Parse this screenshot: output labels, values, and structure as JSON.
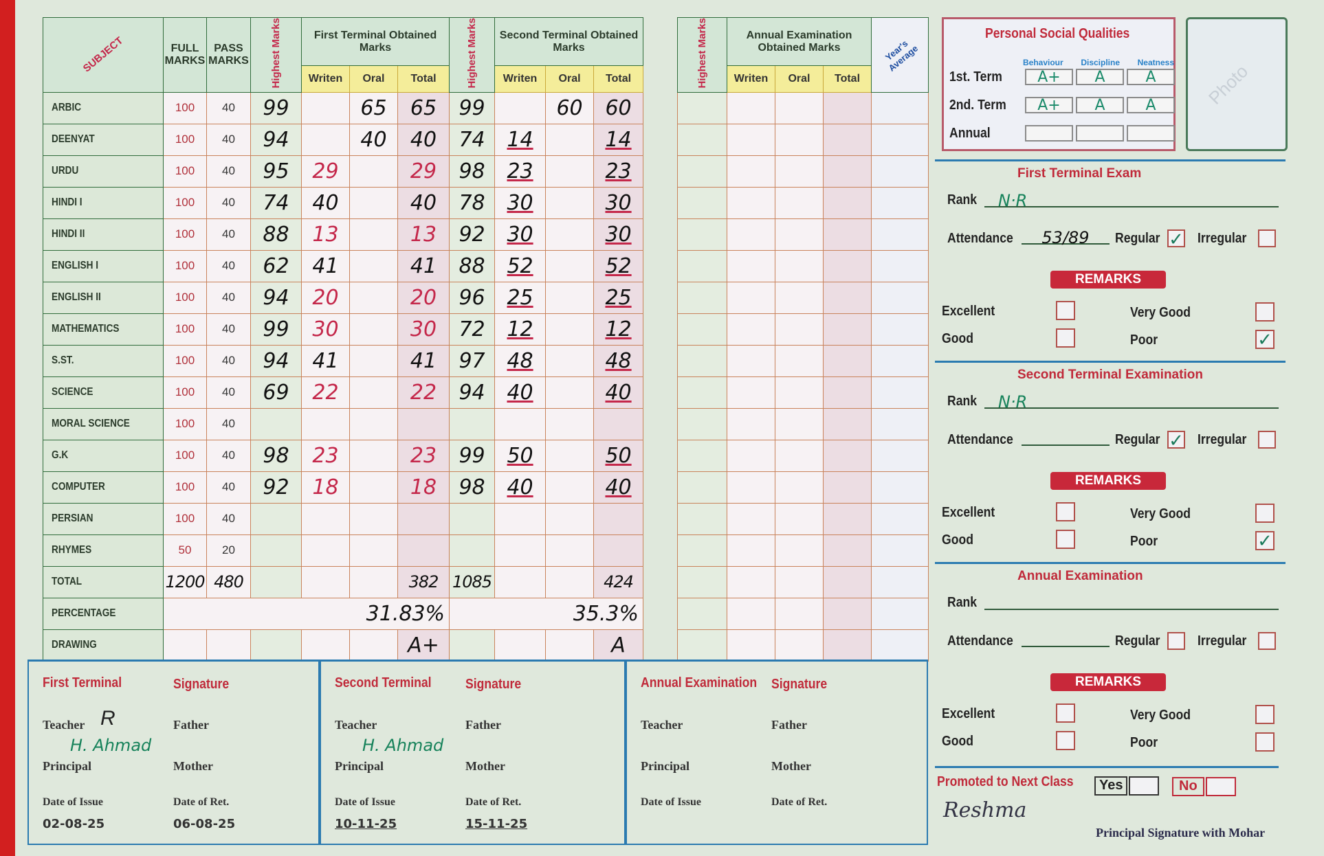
{
  "main_table": {
    "headers": {
      "subject": "SUBJECT",
      "full_marks": "FULL MARKS",
      "pass_marks": "PASS MARKS",
      "highest_marks": "Highest Marks",
      "first_terminal": "First Terminal Obtained Marks",
      "second_terminal": "Second Terminal Obtained Marks",
      "writen": "Writen",
      "oral": "Oral",
      "total": "Total"
    },
    "rows": [
      {
        "subject": "ARBIC",
        "full": "100",
        "pass": "40",
        "ft_highest": "99",
        "ft_writen": "",
        "ft_oral": "65",
        "ft_total": "65",
        "st_highest": "99",
        "st_writen": "",
        "st_oral": "60",
        "st_total": "60",
        "ft_ink": "black"
      },
      {
        "subject": "DEENYAT",
        "full": "100",
        "pass": "40",
        "ft_highest": "94",
        "ft_writen": "",
        "ft_oral": "40",
        "ft_total": "40",
        "st_highest": "74",
        "st_writen": "14",
        "st_oral": "",
        "st_total": "14",
        "ft_ink": "black"
      },
      {
        "subject": "URDU",
        "full": "100",
        "pass": "40",
        "ft_highest": "95",
        "ft_writen": "29",
        "ft_oral": "",
        "ft_total": "29",
        "st_highest": "98",
        "st_writen": "23",
        "st_oral": "",
        "st_total": "23",
        "ft_ink": "red"
      },
      {
        "subject": "HINDI I",
        "full": "100",
        "pass": "40",
        "ft_highest": "74",
        "ft_writen": "40",
        "ft_oral": "",
        "ft_total": "40",
        "st_highest": "78",
        "st_writen": "30",
        "st_oral": "",
        "st_total": "30",
        "ft_ink": "black"
      },
      {
        "subject": "HINDI II",
        "full": "100",
        "pass": "40",
        "ft_highest": "88",
        "ft_writen": "13",
        "ft_oral": "",
        "ft_total": "13",
        "st_highest": "92",
        "st_writen": "30",
        "st_oral": "",
        "st_total": "30",
        "ft_ink": "red"
      },
      {
        "subject": "ENGLISH I",
        "full": "100",
        "pass": "40",
        "ft_highest": "62",
        "ft_writen": "41",
        "ft_oral": "",
        "ft_total": "41",
        "st_highest": "88",
        "st_writen": "52",
        "st_oral": "",
        "st_total": "52",
        "ft_ink": "black"
      },
      {
        "subject": "ENGLISH II",
        "full": "100",
        "pass": "40",
        "ft_highest": "94",
        "ft_writen": "20",
        "ft_oral": "",
        "ft_total": "20",
        "st_highest": "96",
        "st_writen": "25",
        "st_oral": "",
        "st_total": "25",
        "ft_ink": "red"
      },
      {
        "subject": "MATHEMATICS",
        "full": "100",
        "pass": "40",
        "ft_highest": "99",
        "ft_writen": "30",
        "ft_oral": "",
        "ft_total": "30",
        "st_highest": "72",
        "st_writen": "12",
        "st_oral": "",
        "st_total": "12",
        "ft_ink": "red"
      },
      {
        "subject": "S.ST.",
        "full": "100",
        "pass": "40",
        "ft_highest": "94",
        "ft_writen": "41",
        "ft_oral": "",
        "ft_total": "41",
        "st_highest": "97",
        "st_writen": "48",
        "st_oral": "",
        "st_total": "48",
        "ft_ink": "black"
      },
      {
        "subject": "SCIENCE",
        "full": "100",
        "pass": "40",
        "ft_highest": "69",
        "ft_writen": "22",
        "ft_oral": "",
        "ft_total": "22",
        "st_highest": "94",
        "st_writen": "40",
        "st_oral": "",
        "st_total": "40",
        "ft_ink": "red"
      },
      {
        "subject": "MORAL SCIENCE",
        "full": "100",
        "pass": "40",
        "ft_highest": "",
        "ft_writen": "",
        "ft_oral": "",
        "ft_total": "",
        "st_highest": "",
        "st_writen": "",
        "st_oral": "",
        "st_total": "",
        "ft_ink": "black"
      },
      {
        "subject": "G.K",
        "full": "100",
        "pass": "40",
        "ft_highest": "98",
        "ft_writen": "23",
        "ft_oral": "",
        "ft_total": "23",
        "st_highest": "99",
        "st_writen": "50",
        "st_oral": "",
        "st_total": "50",
        "ft_ink": "red"
      },
      {
        "subject": "COMPUTER",
        "full": "100",
        "pass": "40",
        "ft_highest": "92",
        "ft_writen": "18",
        "ft_oral": "",
        "ft_total": "18",
        "st_highest": "98",
        "st_writen": "40",
        "st_oral": "",
        "st_total": "40",
        "ft_ink": "red"
      },
      {
        "subject": "PERSIAN",
        "full": "100",
        "pass": "40",
        "ft_highest": "",
        "ft_writen": "",
        "ft_oral": "",
        "ft_total": "",
        "st_highest": "",
        "st_writen": "",
        "st_oral": "",
        "st_total": "",
        "ft_ink": "black"
      },
      {
        "subject": "RHYMES",
        "full": "50",
        "pass": "20",
        "ft_highest": "",
        "ft_writen": "",
        "ft_oral": "",
        "ft_total": "",
        "st_highest": "",
        "st_writen": "",
        "st_oral": "",
        "st_total": "",
        "ft_ink": "black"
      },
      {
        "subject": "TOTAL",
        "full": "1200",
        "pass": "480",
        "ft_highest": "",
        "ft_writen": "",
        "ft_oral": "",
        "ft_total": "382",
        "st_highest": "1085",
        "st_writen": "",
        "st_oral": "",
        "st_total": "424",
        "ft_ink": "black"
      }
    ],
    "percentage": {
      "label": "PERCENTAGE",
      "first_terminal": "31.83%",
      "second_terminal": "35.3%"
    },
    "drawing": {
      "label": "DRAWING",
      "first_terminal": "A+",
      "second_terminal": "A"
    }
  },
  "annual_table": {
    "highest_marks": "Highest Marks",
    "title": "Annual Examination Obtained Marks",
    "writen": "Writen",
    "oral": "Oral",
    "total": "Total",
    "years_average": "Year's Average"
  },
  "personal_social_qualities": {
    "title": "Personal Social Qualities",
    "columns": [
      "Behaviour",
      "Discipline",
      "Neatness"
    ],
    "rows": [
      {
        "label": "1st. Term",
        "grades": [
          "A+",
          "A",
          "A"
        ]
      },
      {
        "label": "2nd. Term",
        "grades": [
          "A+",
          "A",
          "A"
        ]
      },
      {
        "label": "Annual",
        "grades": [
          "",
          "",
          ""
        ]
      }
    ],
    "photo_label": "Photo"
  },
  "first_terminal_exam": {
    "title": "First Terminal Exam",
    "rank_label": "Rank",
    "rank": "N·R",
    "attendance_label": "Attendance",
    "attendance": "53/89",
    "regular_label": "Regular",
    "regular_checked": true,
    "irregular_label": "Irregular",
    "irregular_checked": false,
    "remarks_label": "REMARKS",
    "remarks": {
      "Excellent": false,
      "Very Good": false,
      "Good": false,
      "Poor": true
    },
    "remark_labels": [
      "Excellent",
      "Very Good",
      "Good",
      "Poor"
    ]
  },
  "second_terminal_exam": {
    "title": "Second Terminal Examination",
    "rank_label": "Rank",
    "rank": "N·R",
    "attendance_label": "Attendance",
    "attendance": "",
    "regular_label": "Regular",
    "regular_checked": true,
    "irregular_label": "Irregular",
    "irregular_checked": false,
    "remarks_label": "REMARKS",
    "remarks": {
      "Excellent": false,
      "Very Good": false,
      "Good": false,
      "Poor": true
    },
    "remark_labels": [
      "Excellent",
      "Very Good",
      "Good",
      "Poor"
    ]
  },
  "annual_exam": {
    "title": "Annual Examination",
    "rank_label": "Rank",
    "rank": "",
    "attendance_label": "Attendance",
    "attendance": "",
    "regular_label": "Regular",
    "regular_checked": false,
    "irregular_label": "Irregular",
    "irregular_checked": false,
    "remarks_label": "REMARKS",
    "remarks": {
      "Excellent": false,
      "Very Good": false,
      "Good": false,
      "Poor": false
    },
    "remark_labels": [
      "Excellent",
      "Very Good",
      "Good",
      "Poor"
    ]
  },
  "promotion": {
    "label": "Promoted to Next Class",
    "yes_label": "Yes",
    "no_label": "No",
    "signature": "Reshma",
    "principal_label": "Principal Signature with Mohar"
  },
  "signatures": [
    {
      "title": "First Terminal",
      "sig_title": "Signature",
      "teacher": "Teacher",
      "father": "Father",
      "principal": "Principal",
      "mother": "Mother",
      "date_issue_label": "Date of Issue",
      "date_ret_label": "Date of Ret.",
      "date_issue": "02-08-25",
      "date_ret": "06-08-25",
      "principal_sig": "H. Ahmad",
      "teacher_sig": "R"
    },
    {
      "title": "Second Terminal",
      "sig_title": "Signature",
      "teacher": "Teacher",
      "father": "Father",
      "principal": "Principal",
      "mother": "Mother",
      "date_issue_label": "Date of Issue",
      "date_ret_label": "Date of Ret.",
      "date_issue": "10-11-25",
      "date_ret": "15-11-25",
      "principal_sig": "H. Ahmad",
      "teacher_sig": ""
    },
    {
      "title": "Annual Examination",
      "sig_title": "Signature",
      "teacher": "Teacher",
      "father": "Father",
      "principal": "Principal",
      "mother": "Mother",
      "date_issue_label": "Date of Issue",
      "date_ret_label": "Date of Ret.",
      "date_issue": "",
      "date_ret": "",
      "principal_sig": "",
      "teacher_sig": ""
    }
  ],
  "colors": {
    "card": "#dfe8dc",
    "accent_red": "#c02a3a",
    "header_green": "#d3e6d6",
    "ink_green": "#16825a",
    "rule_blue": "#2a7ab0"
  }
}
